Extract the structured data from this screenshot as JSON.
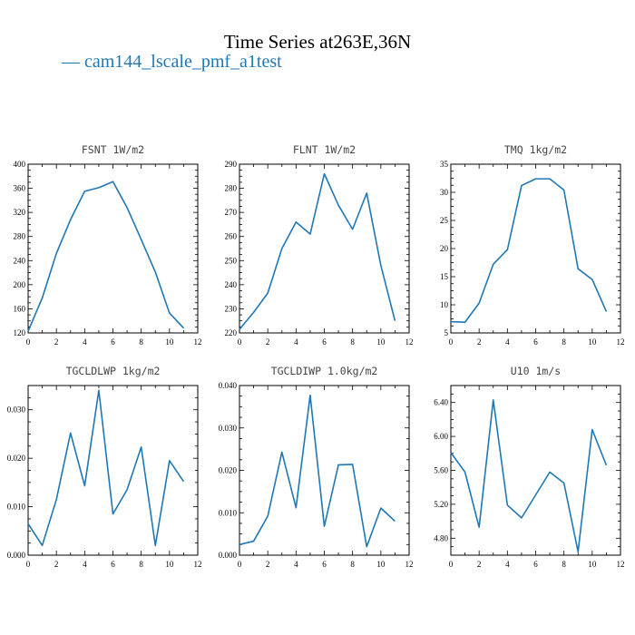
{
  "figure": {
    "title": "Time Series at263E,36N",
    "legend": [
      {
        "label": "cam144_lscale_pmf_a1test",
        "color": "#1f77b4"
      }
    ]
  },
  "chart_data": [
    {
      "type": "line",
      "title": "FSNT  1W/m2",
      "x": [
        0,
        1,
        2,
        3,
        4,
        5,
        6,
        7,
        8,
        9,
        10,
        11
      ],
      "series": [
        {
          "values": [
            123,
            178,
            252,
            308,
            355,
            361,
            371,
            328,
            275,
            221,
            153,
            128
          ]
        }
      ],
      "xlim": [
        0,
        12
      ],
      "ylim": [
        120,
        400
      ],
      "xticks": [
        0,
        2,
        4,
        6,
        8,
        10,
        12
      ],
      "yticks": [
        120,
        160,
        200,
        240,
        280,
        320,
        360,
        400
      ],
      "yticklabels": [
        "120",
        "160",
        "200",
        "240",
        "280",
        "320",
        "360",
        "400"
      ]
    },
    {
      "type": "line",
      "title": "FLNT  1W/m2",
      "x": [
        0,
        1,
        2,
        3,
        4,
        5,
        6,
        7,
        8,
        9,
        10,
        11
      ],
      "series": [
        {
          "values": [
            221.5,
            228.5,
            236.5,
            255,
            266,
            261,
            286,
            273,
            263,
            278,
            248,
            225
          ]
        }
      ],
      "xlim": [
        0,
        12
      ],
      "ylim": [
        220,
        290
      ],
      "xticks": [
        0,
        2,
        4,
        6,
        8,
        10,
        12
      ],
      "yticks": [
        220,
        230,
        240,
        250,
        260,
        270,
        280,
        290
      ],
      "yticklabels": [
        "220",
        "230",
        "240",
        "250",
        "260",
        "270",
        "280",
        "290"
      ]
    },
    {
      "type": "line",
      "title": "TMQ  1kg/m2",
      "x": [
        0,
        1,
        2,
        3,
        4,
        5,
        6,
        7,
        8,
        9,
        10,
        11
      ],
      "series": [
        {
          "values": [
            7.0,
            6.9,
            10.3,
            17.2,
            19.8,
            31.2,
            32.4,
            32.4,
            30.4,
            16.4,
            14.5,
            8.8
          ]
        }
      ],
      "xlim": [
        0,
        12
      ],
      "ylim": [
        5,
        35
      ],
      "xticks": [
        0,
        2,
        4,
        6,
        8,
        10,
        12
      ],
      "yticks": [
        5,
        10,
        15,
        20,
        25,
        30,
        35
      ],
      "yticklabels": [
        "5",
        "10",
        "15",
        "20",
        "25",
        "30",
        "35"
      ]
    },
    {
      "type": "line",
      "title": "TGCLDLWP  1kg/m2",
      "x": [
        0,
        1,
        2,
        3,
        4,
        5,
        6,
        7,
        8,
        9,
        10,
        11
      ],
      "series": [
        {
          "values": [
            0.0065,
            0.002,
            0.0115,
            0.0252,
            0.0143,
            0.034,
            0.0085,
            0.0135,
            0.0223,
            0.002,
            0.0195,
            0.0152
          ]
        }
      ],
      "xlim": [
        0,
        12
      ],
      "ylim": [
        0,
        0.035
      ],
      "xticks": [
        0,
        2,
        4,
        6,
        8,
        10,
        12
      ],
      "yticks": [
        0,
        0.01,
        0.02,
        0.03
      ],
      "yticklabels": [
        "0.000",
        "0.010",
        "0.020",
        "0.030"
      ]
    },
    {
      "type": "line",
      "title": "TGCLDIWP  1.0kg/m2",
      "x": [
        0,
        1,
        2,
        3,
        4,
        5,
        6,
        7,
        8,
        9,
        10,
        11
      ],
      "series": [
        {
          "values": [
            0.0025,
            0.0033,
            0.0092,
            0.0243,
            0.0112,
            0.0377,
            0.0068,
            0.0213,
            0.0214,
            0.002,
            0.0111,
            0.008
          ]
        }
      ],
      "xlim": [
        0,
        12
      ],
      "ylim": [
        0,
        0.04
      ],
      "xticks": [
        0,
        2,
        4,
        6,
        8,
        10,
        12
      ],
      "yticks": [
        0,
        0.01,
        0.02,
        0.03,
        0.04
      ],
      "yticklabels": [
        "0.000",
        "0.010",
        "0.020",
        "0.030",
        "0.040"
      ]
    },
    {
      "type": "line",
      "title": "U10  1m/s",
      "x": [
        0,
        1,
        2,
        3,
        4,
        5,
        6,
        7,
        8,
        9,
        10,
        11
      ],
      "series": [
        {
          "values": [
            5.81,
            5.58,
            4.93,
            6.43,
            5.19,
            5.04,
            5.31,
            5.58,
            5.45,
            4.64,
            6.08,
            5.66
          ]
        }
      ],
      "xlim": [
        0,
        12
      ],
      "ylim": [
        4.6,
        6.6
      ],
      "xticks": [
        0,
        2,
        4,
        6,
        8,
        10,
        12
      ],
      "yticks": [
        4.8,
        5.2,
        5.6,
        6.0,
        6.4
      ],
      "yticklabels": [
        "4.80",
        "5.20",
        "5.60",
        "6.00",
        "6.40"
      ]
    }
  ]
}
